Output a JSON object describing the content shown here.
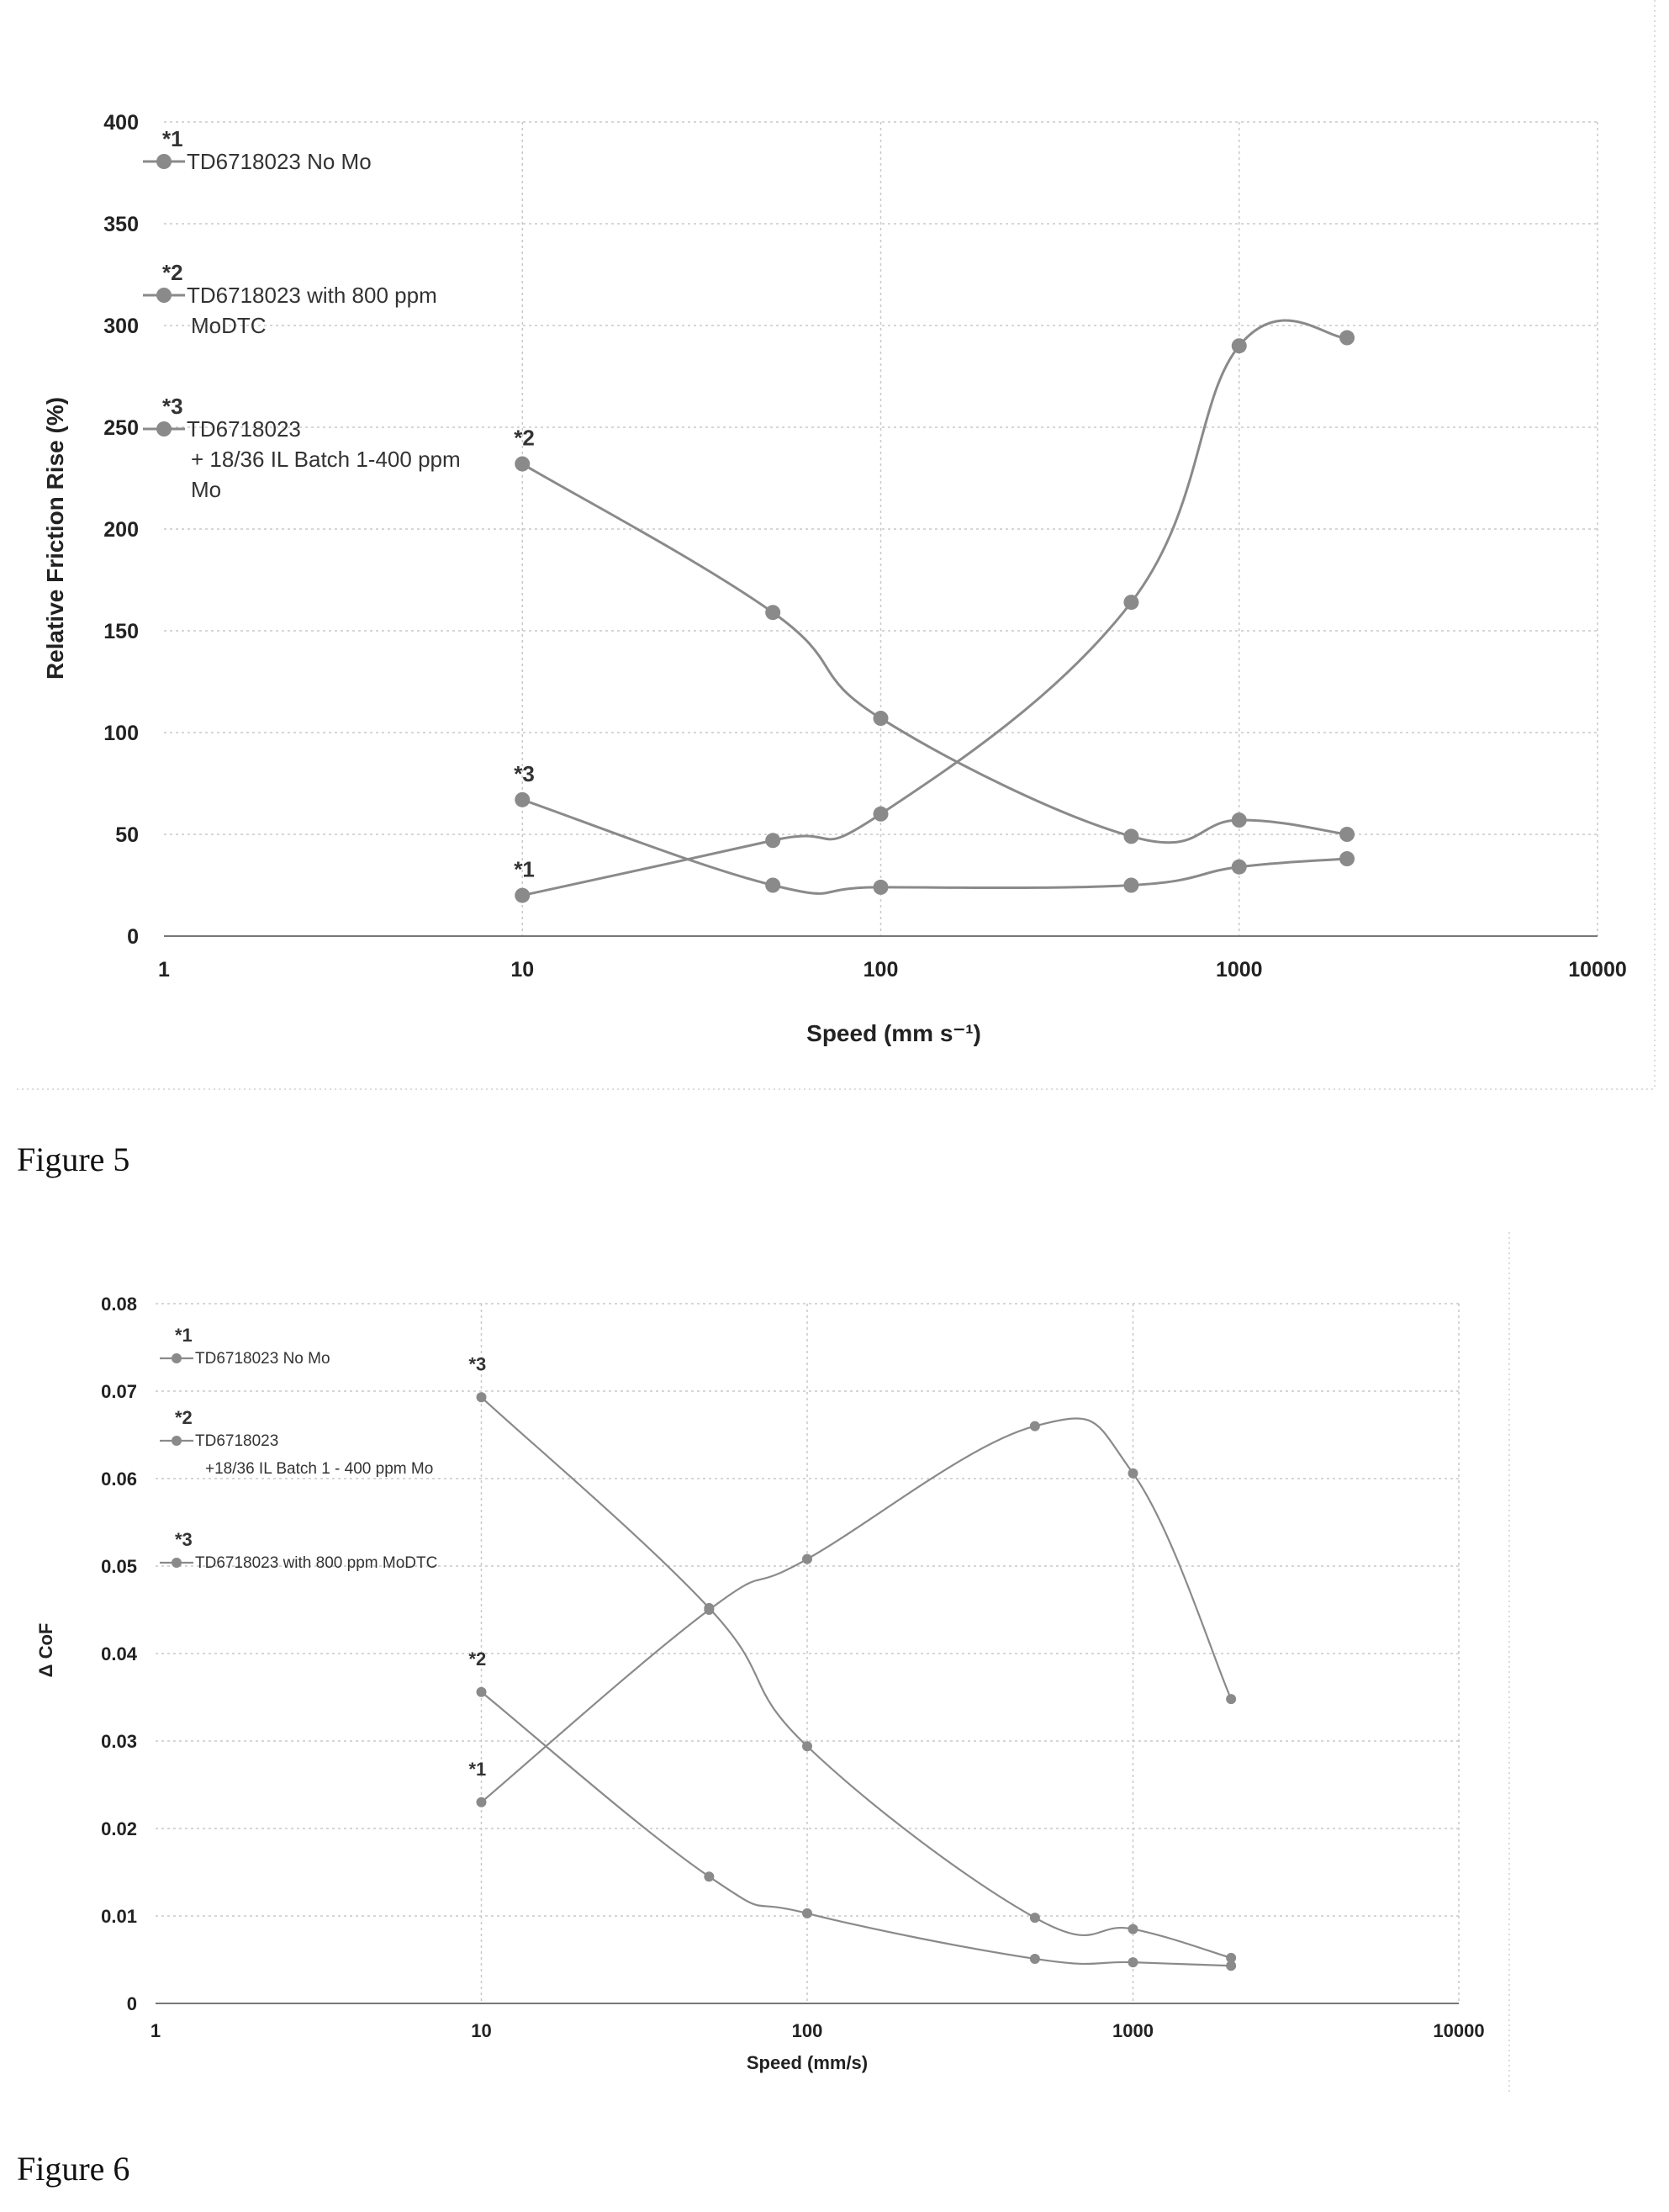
{
  "figure5": {
    "caption": "Figure 5",
    "chart_data": {
      "type": "line",
      "xscale": "log",
      "xlabel": "Speed (mm s⁻¹)",
      "ylabel": "Relative Friction Rise (%)",
      "xlim": [
        1,
        10000
      ],
      "ylim": [
        0,
        400
      ],
      "xticks": [
        "1",
        "10",
        "100",
        "1000",
        "10000"
      ],
      "yticks": [
        "0",
        "50",
        "100",
        "150",
        "200",
        "250",
        "300",
        "350",
        "400"
      ],
      "grid": true,
      "legend_position": "top-left",
      "series": [
        {
          "name": "TD6718023 No Mo",
          "marker": "*1",
          "x": [
            10,
            50,
            100,
            500,
            1000,
            2000
          ],
          "y": [
            20,
            47,
            60,
            164,
            290,
            294
          ]
        },
        {
          "name": "TD6718023 with 800 ppm MoDTC",
          "marker": "*2",
          "x": [
            10,
            50,
            100,
            500,
            1000,
            2000
          ],
          "y": [
            232,
            159,
            107,
            49,
            57,
            50
          ]
        },
        {
          "name": "TD6718023 + 18/36 IL  Batch 1-400 ppm Mo",
          "marker": "*3",
          "x": [
            10,
            50,
            100,
            500,
            1000,
            2000
          ],
          "y": [
            67,
            25,
            24,
            25,
            34,
            38
          ]
        }
      ],
      "legend": [
        {
          "marker": "*1",
          "lines": [
            "TD6718023 No Mo"
          ]
        },
        {
          "marker": "*2",
          "lines": [
            "TD6718023 with 800 ppm",
            "MoDTC"
          ]
        },
        {
          "marker": "*3",
          "lines": [
            "TD6718023",
            "+ 18/36 IL  Batch 1-400 ppm",
            "Mo"
          ]
        }
      ]
    }
  },
  "figure6": {
    "caption": "Figure 6",
    "chart_data": {
      "type": "line",
      "xscale": "log",
      "xlabel": "Speed (mm/s)",
      "ylabel": "Δ CoF",
      "xlim": [
        1,
        10000
      ],
      "ylim": [
        0,
        0.08
      ],
      "xticks": [
        "1",
        "10",
        "100",
        "1000",
        "10000"
      ],
      "yticks": [
        "0",
        "0.01",
        "0.02",
        "0.03",
        "0.04",
        "0.05",
        "0.06",
        "0.07",
        "0.08"
      ],
      "grid": true,
      "legend_position": "top-left",
      "series": [
        {
          "name": "TD6718023 No Mo",
          "marker": "*1",
          "x": [
            10,
            50,
            100,
            500,
            1000,
            2000
          ],
          "y": [
            0.023,
            0.045,
            0.0508,
            0.066,
            0.0606,
            0.0348
          ]
        },
        {
          "name": "TD6718023 +18/36 IL  Batch 1 - 400 ppm Mo",
          "marker": "*2",
          "x": [
            10,
            50,
            100,
            500,
            1000,
            2000
          ],
          "y": [
            0.0356,
            0.0145,
            0.0103,
            0.0051,
            0.0047,
            0.0043
          ]
        },
        {
          "name": "TD6718023 with 800 ppm MoDTC",
          "marker": "*3",
          "x": [
            10,
            50,
            100,
            500,
            1000,
            2000
          ],
          "y": [
            0.0693,
            0.0452,
            0.0294,
            0.0098,
            0.0085,
            0.0052
          ]
        }
      ],
      "legend": [
        {
          "marker": "*1",
          "lines": [
            "TD6718023 No Mo"
          ]
        },
        {
          "marker": "*2",
          "lines": [
            "TD6718023",
            "+18/36 IL  Batch 1 - 400 ppm Mo"
          ]
        },
        {
          "marker": "*3",
          "lines": [
            "TD6718023 with 800 ppm MoDTC"
          ]
        }
      ]
    }
  }
}
